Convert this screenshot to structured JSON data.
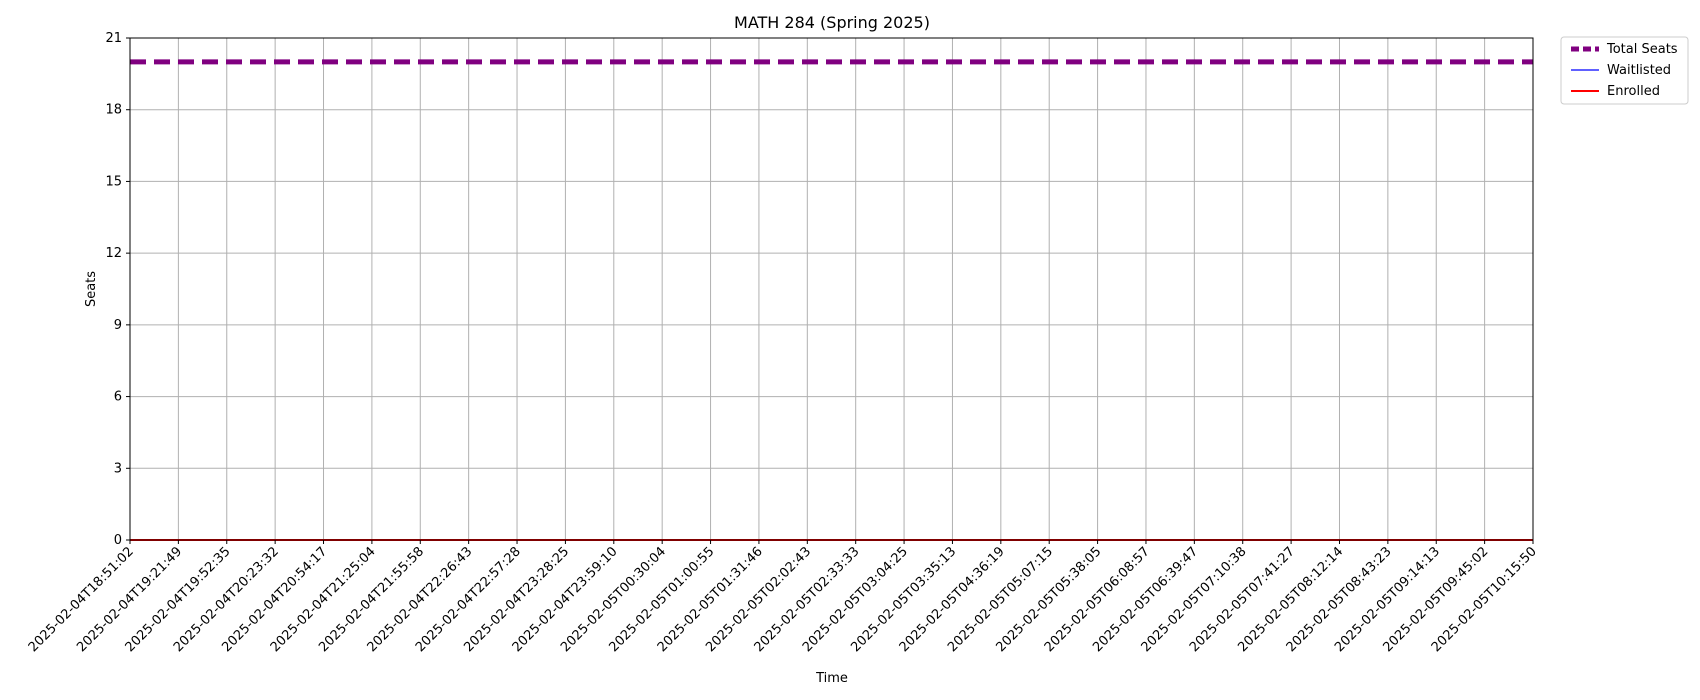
{
  "chart_data": {
    "type": "line",
    "title": "MATH 284 (Spring 2025)",
    "xlabel": "Time",
    "ylabel": "Seats",
    "ylim": [
      0,
      21
    ],
    "yticks": [
      0,
      3,
      6,
      9,
      12,
      15,
      18,
      21
    ],
    "grid": true,
    "legend_placement": "outside-top-right",
    "x": [
      "2025-02-04T18:51:02",
      "2025-02-04T19:21:49",
      "2025-02-04T19:52:35",
      "2025-02-04T20:23:32",
      "2025-02-04T20:54:17",
      "2025-02-04T21:25:04",
      "2025-02-04T21:55:58",
      "2025-02-04T22:26:43",
      "2025-02-04T22:57:28",
      "2025-02-04T23:28:25",
      "2025-02-04T23:59:10",
      "2025-02-05T00:30:04",
      "2025-02-05T01:00:55",
      "2025-02-05T01:31:46",
      "2025-02-05T02:02:43",
      "2025-02-05T02:33:33",
      "2025-02-05T03:04:25",
      "2025-02-05T03:35:13",
      "2025-02-05T04:36:19",
      "2025-02-05T05:07:15",
      "2025-02-05T05:38:05",
      "2025-02-05T06:08:57",
      "2025-02-05T06:39:47",
      "2025-02-05T07:10:38",
      "2025-02-05T07:41:27",
      "2025-02-05T08:12:14",
      "2025-02-05T08:43:23",
      "2025-02-05T09:14:13",
      "2025-02-05T09:45:02",
      "2025-02-05T10:15:50"
    ],
    "series": [
      {
        "name": "Total Seats",
        "color": "#800080",
        "style": "dashed",
        "values": [
          20,
          20,
          20,
          20,
          20,
          20,
          20,
          20,
          20,
          20,
          20,
          20,
          20,
          20,
          20,
          20,
          20,
          20,
          20,
          20,
          20,
          20,
          20,
          20,
          20,
          20,
          20,
          20,
          20,
          20
        ]
      },
      {
        "name": "Waitlisted",
        "color": "#0000ff",
        "style": "solid-thin",
        "values": [
          0,
          0,
          0,
          0,
          0,
          0,
          0,
          0,
          0,
          0,
          0,
          0,
          0,
          0,
          0,
          0,
          0,
          0,
          0,
          0,
          0,
          0,
          0,
          0,
          0,
          0,
          0,
          0,
          0,
          0
        ]
      },
      {
        "name": "Enrolled",
        "color": "#ff0000",
        "style": "solid",
        "values": [
          0,
          0,
          0,
          0,
          0,
          0,
          0,
          0,
          0,
          0,
          0,
          0,
          0,
          0,
          0,
          0,
          0,
          0,
          0,
          0,
          0,
          0,
          0,
          0,
          0,
          0,
          0,
          0,
          0,
          0
        ]
      }
    ]
  }
}
